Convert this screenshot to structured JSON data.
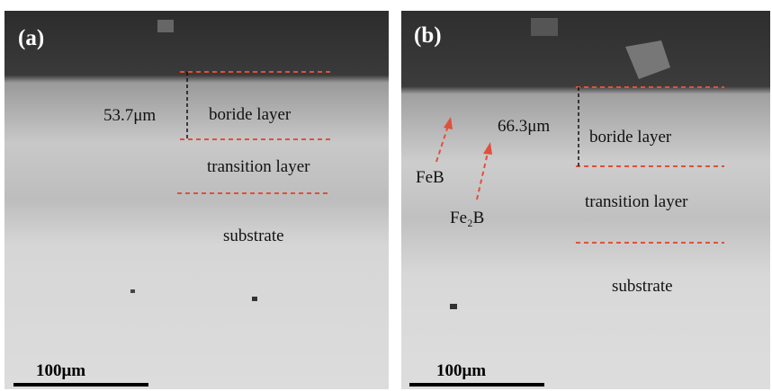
{
  "panels": [
    {
      "label": "(a)",
      "thickness": "53.7μm",
      "layers": [
        "boride layer",
        "transition layer",
        "substrate"
      ],
      "scale_bar": "100μm"
    },
    {
      "label": "(b)",
      "thickness": "66.3μm",
      "layers": [
        "boride layer",
        "transition layer",
        "substrate"
      ],
      "phases": [
        "FeB",
        "Fe₂B"
      ],
      "scale_bar": "100μm"
    }
  ]
}
